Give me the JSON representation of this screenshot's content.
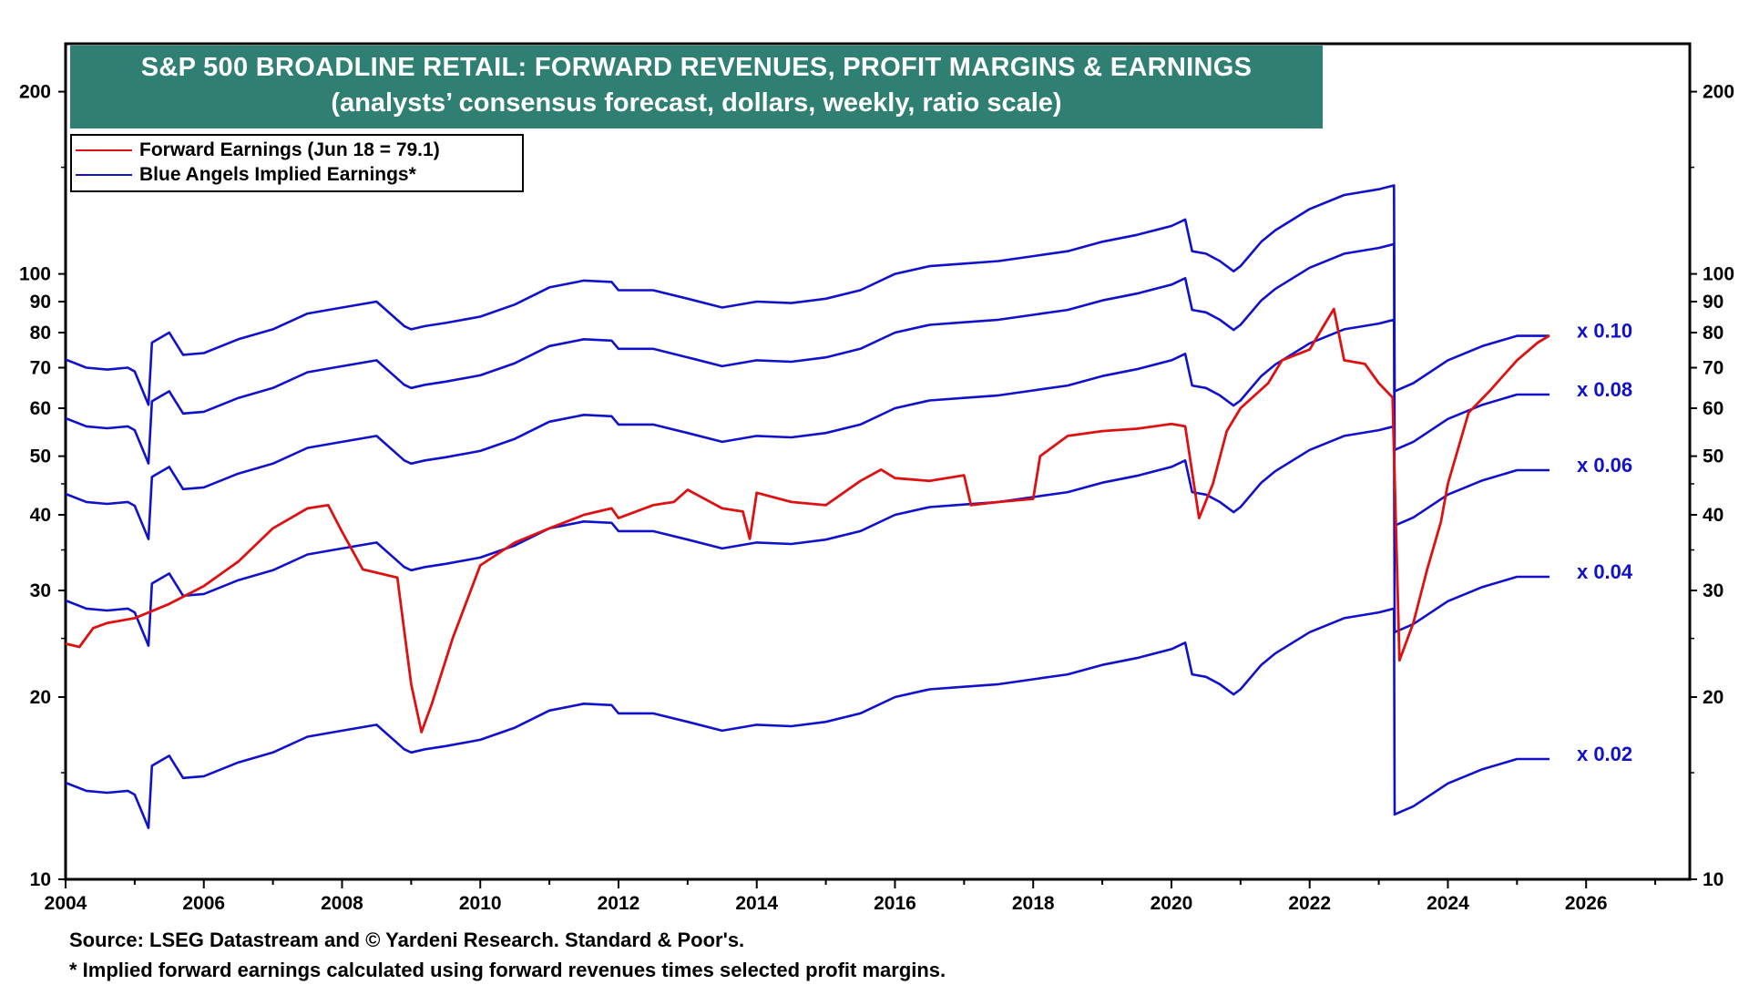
{
  "title": "S&P 500 BROADLINE RETAIL: FORWARD REVENUES, PROFIT MARGINS & EARNINGS",
  "subtitle": "(analysts’ consensus forecast, dollars, weekly, ratio scale)",
  "legend": [
    {
      "label": "Forward Earnings (Jun 18 = 79.1)",
      "color": "#dd1111"
    },
    {
      "label": "Blue Angels Implied Earnings*",
      "color": "#1111cc"
    }
  ],
  "footnotes": [
    "Source: LSEG Datastream and © Yardeni Research. Standard & Poor's.",
    "* Implied forward earnings calculated using forward revenues times selected profit margins."
  ],
  "chart_data": {
    "type": "line",
    "yscale": "log",
    "xlim": [
      2004,
      2027.5
    ],
    "ylim": [
      10,
      240
    ],
    "xticks": [
      "2004",
      "2006",
      "2008",
      "2010",
      "2012",
      "2014",
      "2016",
      "2018",
      "2020",
      "2022",
      "2024",
      "2026"
    ],
    "yticks": [
      "10",
      "20",
      "30",
      "40",
      "50",
      "60",
      "70",
      "80",
      "90",
      "100",
      "200"
    ],
    "grid": false,
    "legend_position": "top-left",
    "colors": {
      "forward": "#dd1111",
      "implied": "#1111cc"
    },
    "series": [
      {
        "name": "Forward Earnings (Jun 18 = 79.1)",
        "x": [
          2004.0,
          2004.2,
          2004.4,
          2004.6,
          2005.0,
          2005.5,
          2006.0,
          2006.5,
          2007.0,
          2007.5,
          2007.8,
          2008.0,
          2008.3,
          2008.8,
          2009.0,
          2009.15,
          2009.3,
          2009.6,
          2010.0,
          2010.5,
          2011.0,
          2011.5,
          2011.9,
          2012.0,
          2012.5,
          2012.8,
          2013.0,
          2013.5,
          2013.8,
          2013.9,
          2014.0,
          2014.5,
          2015.0,
          2015.5,
          2015.8,
          2016.0,
          2016.5,
          2017.0,
          2017.1,
          2017.5,
          2018.0,
          2018.1,
          2018.5,
          2019.0,
          2019.5,
          2020.0,
          2020.2,
          2020.4,
          2020.6,
          2020.8,
          2021.0,
          2021.4,
          2021.6,
          2022.0,
          2022.2,
          2022.35,
          2022.5,
          2022.8,
          2023.0,
          2023.2,
          2023.3,
          2023.5,
          2023.7,
          2023.9,
          2024.0,
          2024.3,
          2024.6,
          2025.0,
          2025.3,
          2025.47
        ],
        "y": [
          24.5,
          24.2,
          26.0,
          26.5,
          27.0,
          28.5,
          30.5,
          33.5,
          38.0,
          41.0,
          41.5,
          37.5,
          32.5,
          31.5,
          21.0,
          17.5,
          19.5,
          25.0,
          33.0,
          36.0,
          38.0,
          40.0,
          41.0,
          39.5,
          41.5,
          42.0,
          44.0,
          41.0,
          40.5,
          36.5,
          43.5,
          42.0,
          41.5,
          45.5,
          47.5,
          46.0,
          45.5,
          46.5,
          41.5,
          42.0,
          42.5,
          50.0,
          54.0,
          55.0,
          55.5,
          56.5,
          56.0,
          39.5,
          45.0,
          55.0,
          60.0,
          66.0,
          72.0,
          75.0,
          82.0,
          87.5,
          72.0,
          71.0,
          66.0,
          62.5,
          23.0,
          26.5,
          32.5,
          39.0,
          45.0,
          59.0,
          64.0,
          72.0,
          77.0,
          79.1
        ]
      },
      {
        "name": "Blue Angels Implied Earnings*",
        "multiples": [
          "x 0.10",
          "x 0.08",
          "x 0.06",
          "x 0.04",
          "x 0.02"
        ],
        "margins": [
          0.1,
          0.08,
          0.06,
          0.04,
          0.02
        ],
        "revenue_x": [
          2004.0,
          2004.3,
          2004.6,
          2004.9,
          2005.0,
          2005.2,
          2005.25,
          2005.5,
          2005.7,
          2006.0,
          2006.5,
          2007.0,
          2007.5,
          2008.0,
          2008.5,
          2008.9,
          2009.0,
          2009.2,
          2009.5,
          2010.0,
          2010.5,
          2011.0,
          2011.5,
          2011.9,
          2012.0,
          2012.5,
          2013.0,
          2013.5,
          2014.0,
          2014.5,
          2015.0,
          2015.5,
          2016.0,
          2016.5,
          2017.0,
          2017.5,
          2018.0,
          2018.5,
          2019.0,
          2019.5,
          2020.0,
          2020.2,
          2020.3,
          2020.5,
          2020.7,
          2020.9,
          2021.0,
          2021.3,
          2021.5,
          2022.0,
          2022.5,
          2023.0,
          2023.22,
          2023.23,
          2023.5,
          2024.0,
          2024.5,
          2025.0,
          2025.47
        ],
        "revenue_y": [
          722,
          700,
          695,
          700,
          690,
          608,
          770,
          800,
          735,
          740,
          780,
          810,
          860,
          880,
          900,
          820,
          810,
          820,
          830,
          850,
          890,
          950,
          975,
          970,
          940,
          940,
          910,
          880,
          900,
          895,
          910,
          940,
          1000,
          1030,
          1040,
          1050,
          1070,
          1090,
          1130,
          1160,
          1200,
          1230,
          1090,
          1080,
          1050,
          1010,
          1030,
          1130,
          1180,
          1280,
          1350,
          1380,
          1400,
          640,
          660,
          720,
          760,
          790,
          790
        ]
      }
    ]
  }
}
